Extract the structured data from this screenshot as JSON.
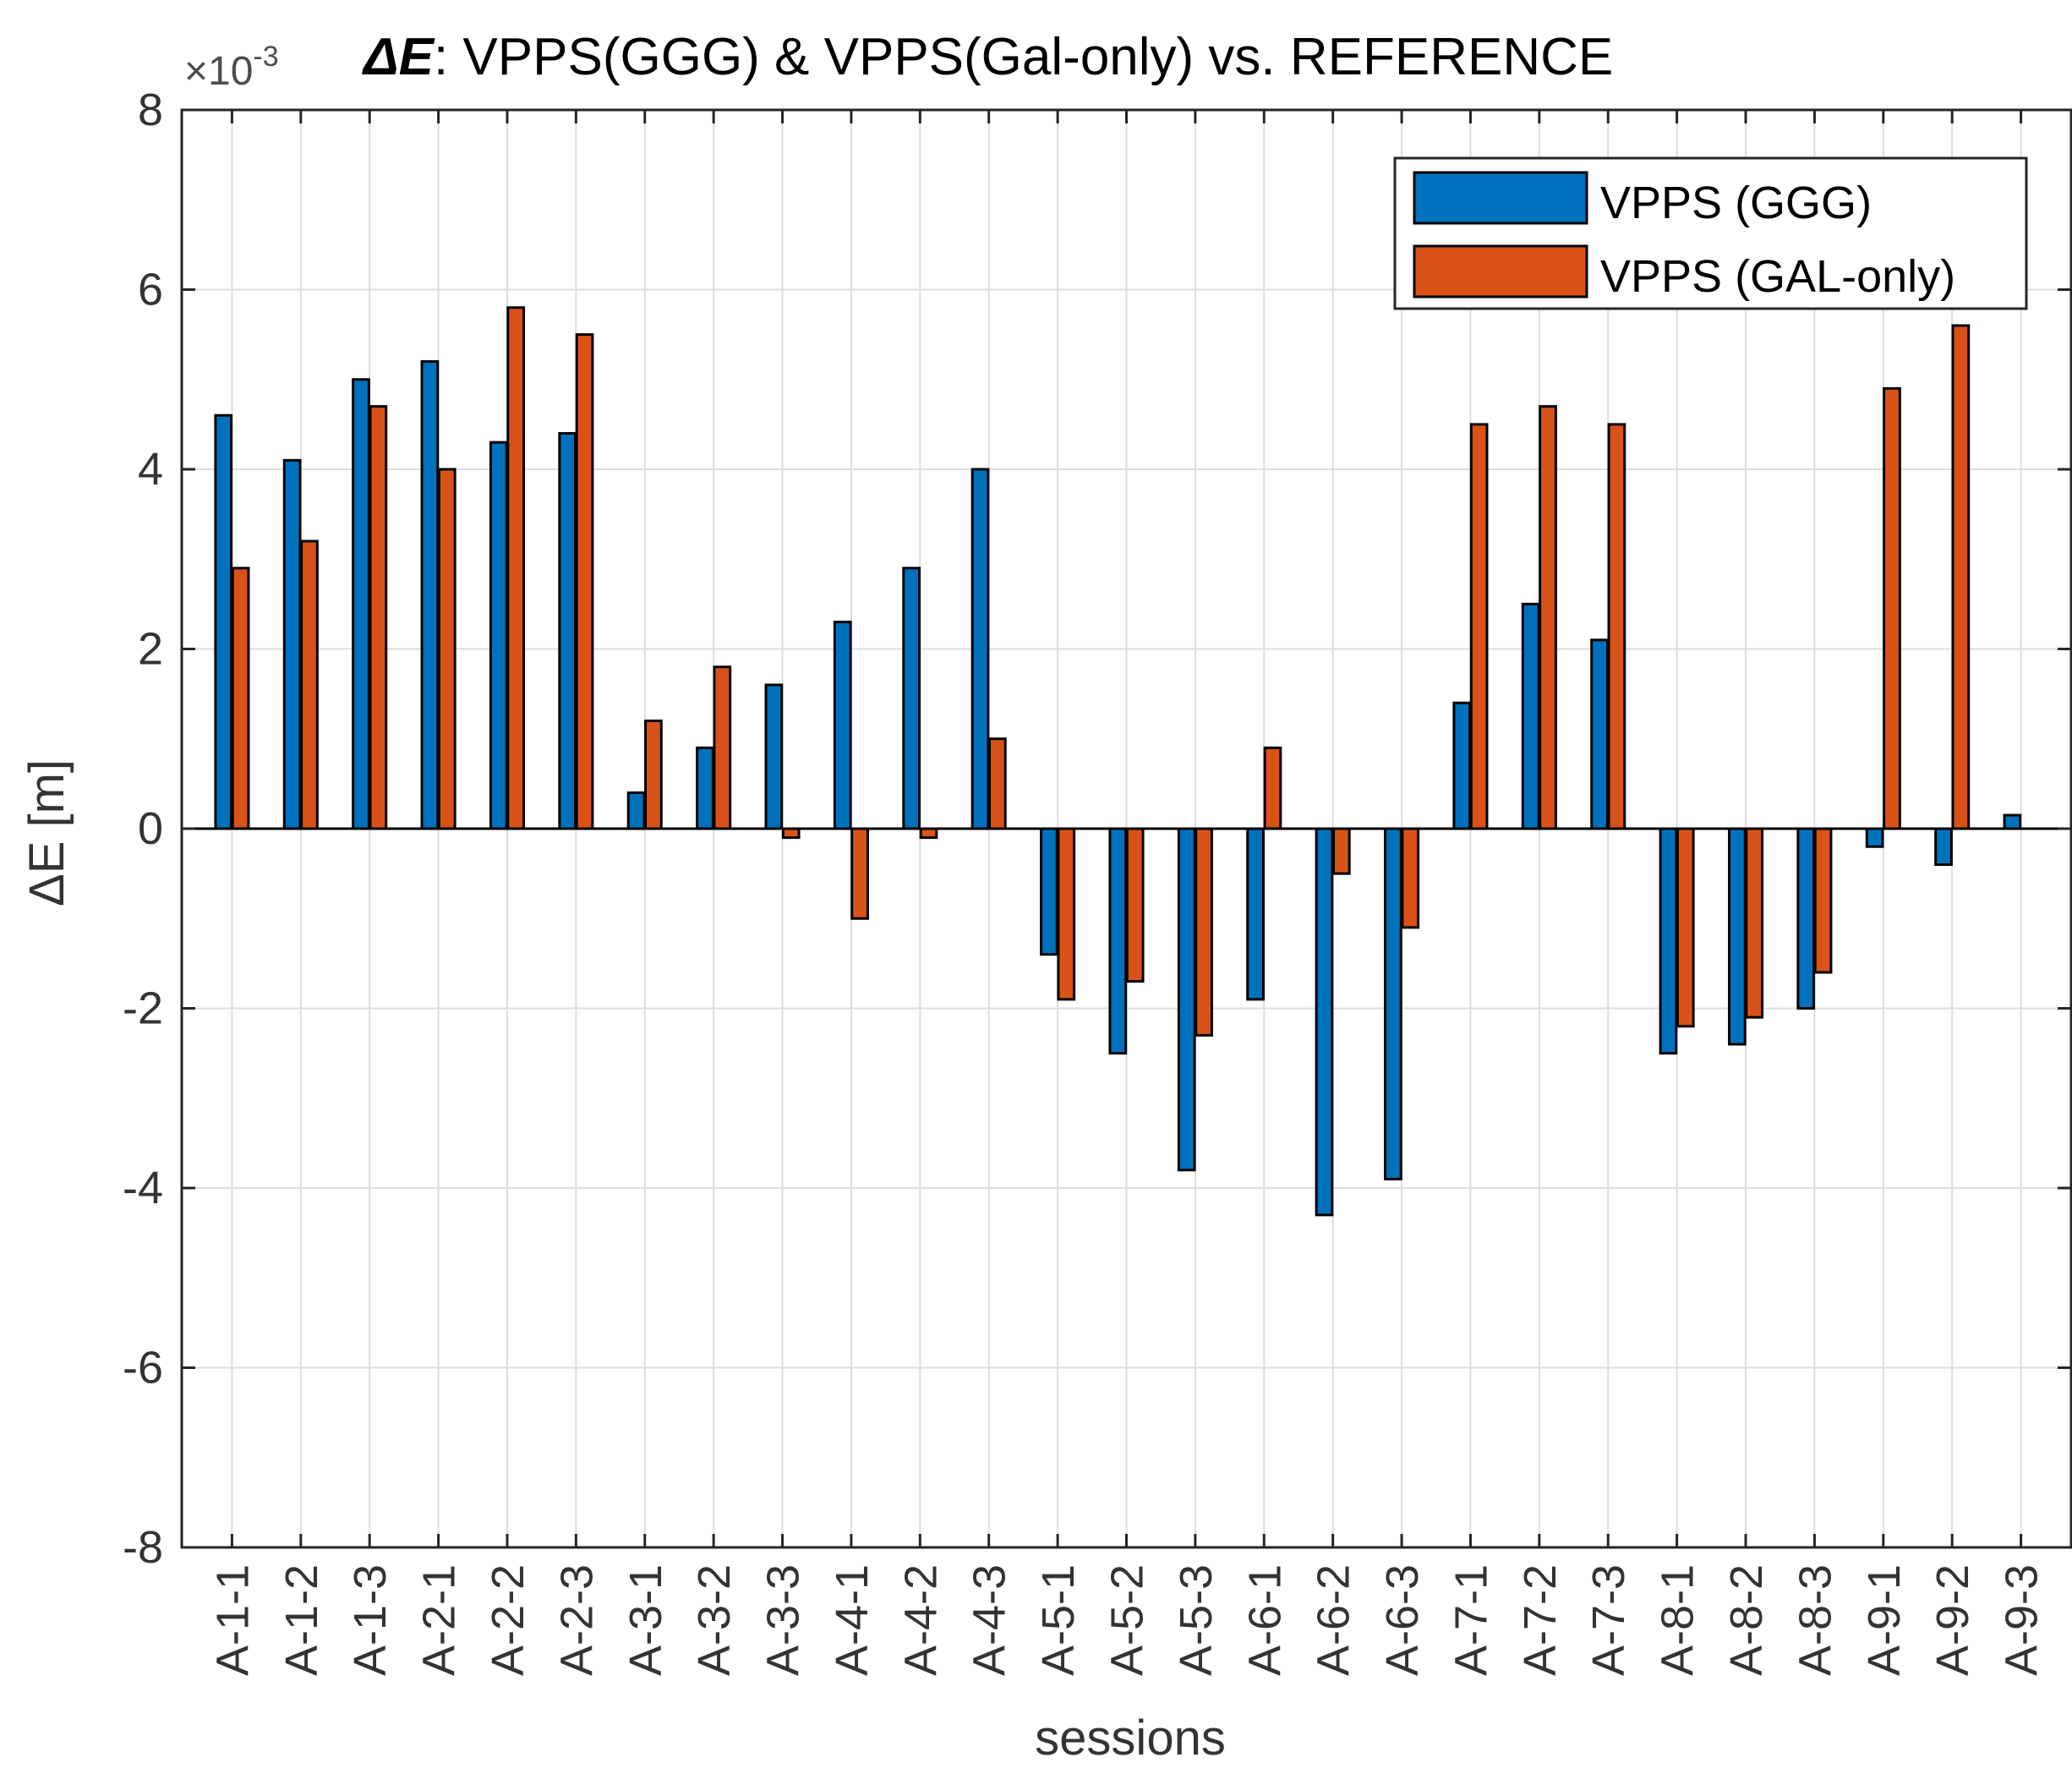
{
  "chart_data": {
    "type": "bar",
    "title_prefix": "ΔE",
    "title_rest": ": VPPS(GGG) & VPPS(Gal-only) vs. REFERENCE",
    "exponent_label": "×10",
    "exponent_power": "-3",
    "xlabel": "sessions",
    "ylabel": "ΔE [m]",
    "ylim": [
      -8,
      8
    ],
    "yticks": [
      -8,
      -6,
      -4,
      -2,
      0,
      2,
      4,
      6,
      8
    ],
    "ytick_labels": [
      "-8",
      "-6",
      "-4",
      "-2",
      "0",
      "2",
      "4",
      "6",
      "8"
    ],
    "grid": true,
    "legend_position": "top-right",
    "categories": [
      "A-1-1",
      "A-1-2",
      "A-1-3",
      "A-2-1",
      "A-2-2",
      "A-2-3",
      "A-3-1",
      "A-3-2",
      "A-3-3",
      "A-4-1",
      "A-4-2",
      "A-4-3",
      "A-5-1",
      "A-5-2",
      "A-5-3",
      "A-6-1",
      "A-6-2",
      "A-6-3",
      "A-7-1",
      "A-7-2",
      "A-7-3",
      "A-8-1",
      "A-8-2",
      "A-8-3",
      "A-9-1",
      "A-9-2",
      "A-9-3"
    ],
    "series": [
      {
        "name": "VPPS (GGG)",
        "color": "#0072BD",
        "values": [
          4.6,
          4.1,
          5.0,
          5.2,
          4.3,
          4.4,
          0.4,
          0.9,
          1.6,
          2.3,
          2.9,
          4.0,
          -1.4,
          -2.5,
          -3.8,
          -1.9,
          -4.3,
          -3.9,
          1.4,
          2.5,
          2.1,
          -2.5,
          -2.4,
          -2.0,
          -0.2,
          -0.4,
          0.15
        ]
      },
      {
        "name": "VPPS (GAL-only)",
        "color": "#D95319",
        "values": [
          2.9,
          3.2,
          4.7,
          4.0,
          5.8,
          5.5,
          1.2,
          1.8,
          -0.1,
          -1.0,
          -0.1,
          1.0,
          -1.9,
          -1.7,
          -2.3,
          0.9,
          -0.5,
          -1.1,
          4.5,
          4.7,
          4.5,
          -2.2,
          -2.1,
          -1.6,
          4.9,
          5.6,
          null
        ]
      }
    ]
  }
}
